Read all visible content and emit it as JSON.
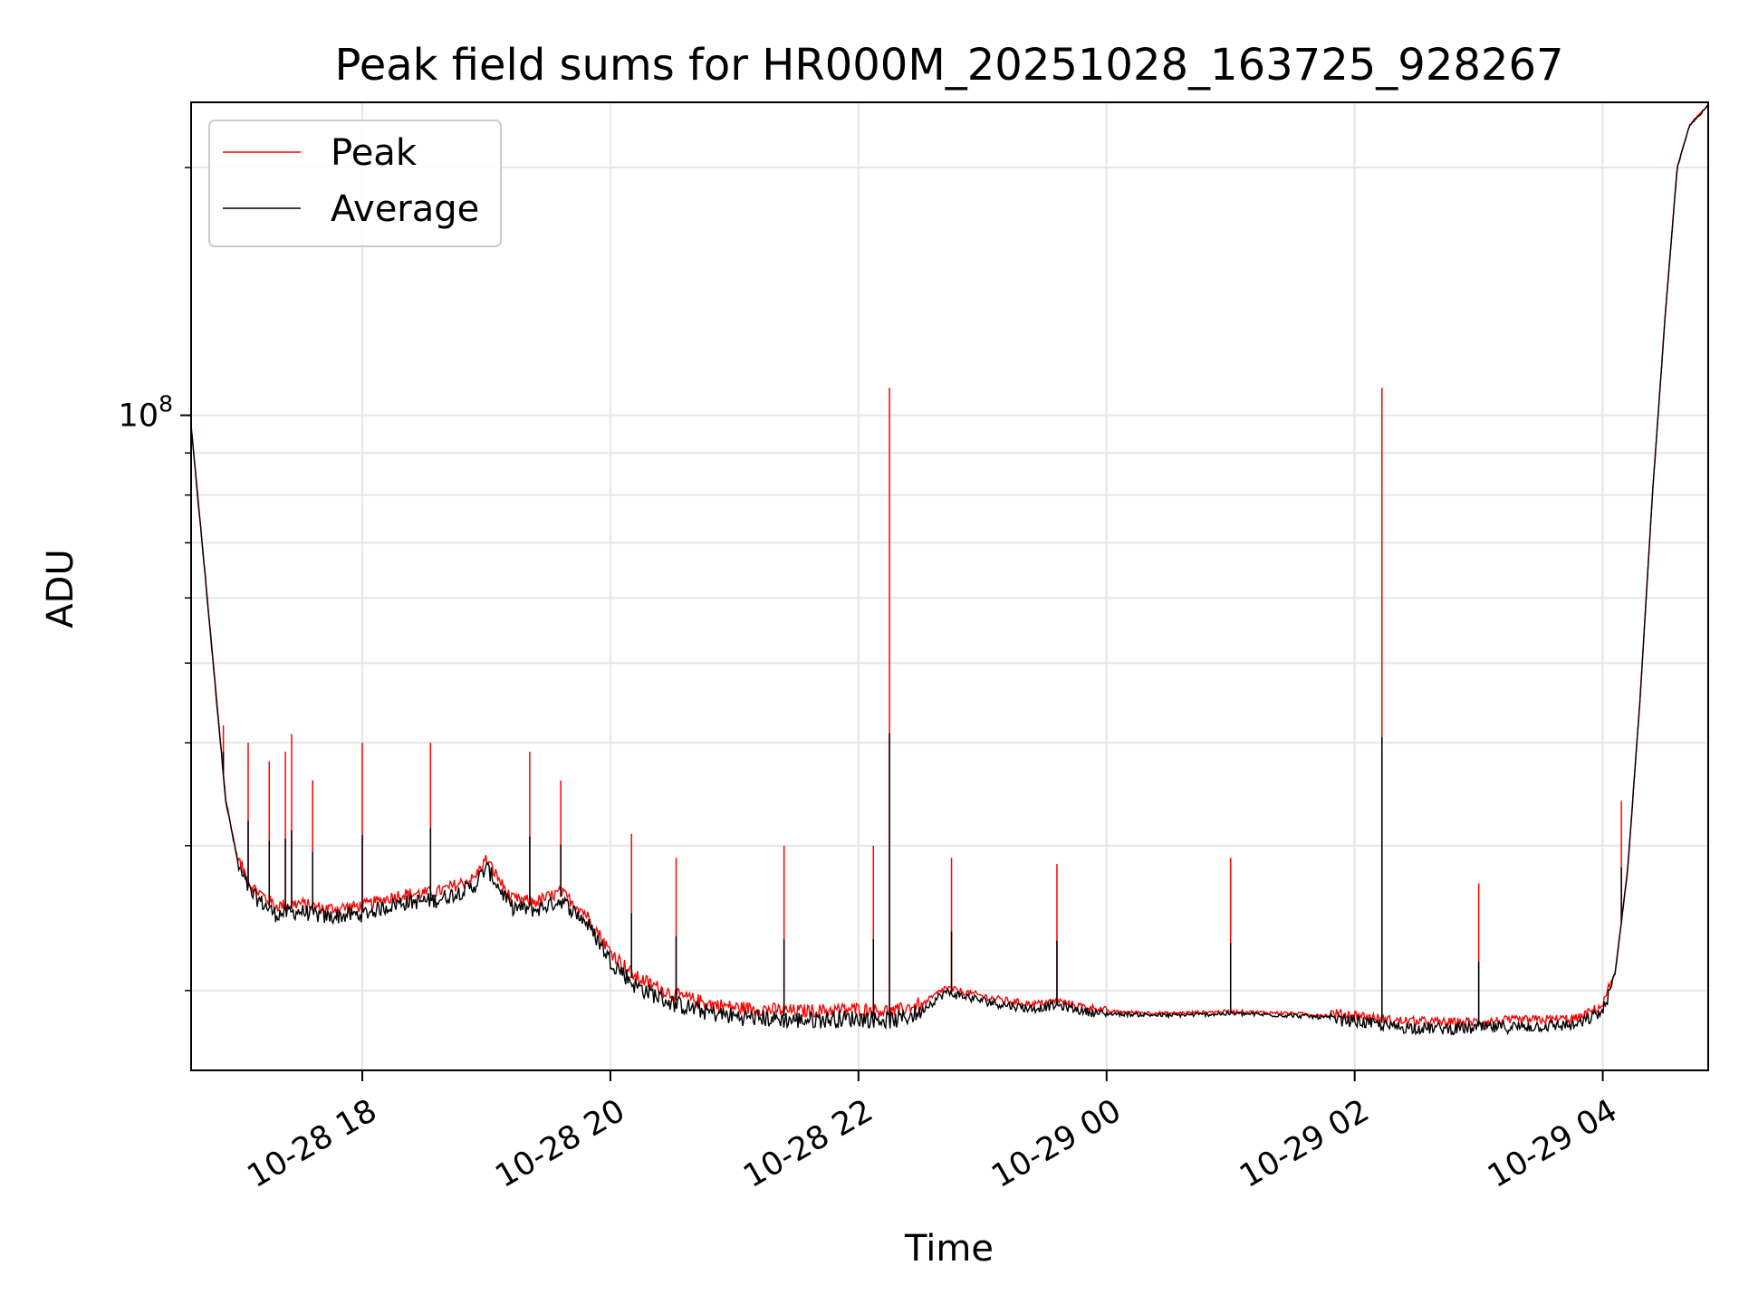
{
  "chart_data": {
    "type": "line",
    "title": "Peak field sums for HR000M_20251028_163725_928267",
    "xlabel": "Time",
    "ylabel": "ADU",
    "yscale": "log",
    "ylim": [
      16000000,
      240000000
    ],
    "xlim_hours": [
      16.62,
      28.85
    ],
    "x_ticks": [
      {
        "hours": 18,
        "label": "10-28 18"
      },
      {
        "hours": 20,
        "label": "10-28 20"
      },
      {
        "hours": 22,
        "label": "10-28 22"
      },
      {
        "hours": 24,
        "label": "10-29 00"
      },
      {
        "hours": 26,
        "label": "10-29 02"
      },
      {
        "hours": 28,
        "label": "10-29 04"
      }
    ],
    "y_major_ticks": [
      {
        "value": 100000000,
        "base": "10",
        "exp": "8"
      }
    ],
    "y_minor_gridlines": [
      20000000,
      30000000,
      40000000,
      50000000,
      60000000,
      70000000,
      80000000,
      90000000,
      200000000
    ],
    "grid": true,
    "legend": {
      "position": "top-left",
      "entries": [
        {
          "label": "Peak",
          "color": "#ff0000"
        },
        {
          "label": "Average",
          "color": "#000000"
        }
      ]
    },
    "series": [
      {
        "name": "Average",
        "color": "#000000",
        "x_hours": [
          16.62,
          16.75,
          16.9,
          17.0,
          17.1,
          17.3,
          17.5,
          17.7,
          18.0,
          18.3,
          18.6,
          18.9,
          19.0,
          19.2,
          19.4,
          19.6,
          19.8,
          20.0,
          20.2,
          20.5,
          20.8,
          21.0,
          21.5,
          22.0,
          22.3,
          22.5,
          22.7,
          22.9,
          23.1,
          23.4,
          23.6,
          23.8,
          24.0,
          24.5,
          25.0,
          25.5,
          26.0,
          26.3,
          26.8,
          27.3,
          27.8,
          28.0,
          28.1,
          28.2,
          28.3,
          28.4,
          28.5,
          28.6,
          28.7,
          28.85
        ],
        "values": [
          97000000,
          60000000,
          34000000,
          28500000,
          26500000,
          25000000,
          25200000,
          24800000,
          25000000,
          25800000,
          26000000,
          27000000,
          28500000,
          25500000,
          25300000,
          26000000,
          24500000,
          22000000,
          20500000,
          19500000,
          19000000,
          18800000,
          18600000,
          18700000,
          18600000,
          19000000,
          20000000,
          19700000,
          19400000,
          19100000,
          19300000,
          19000000,
          18800000,
          18700000,
          18800000,
          18700000,
          18500000,
          18200000,
          18100000,
          18200000,
          18300000,
          19000000,
          21000000,
          28000000,
          45000000,
          80000000,
          130000000,
          200000000,
          225000000,
          238000000
        ]
      },
      {
        "name": "Peak",
        "color": "#ff0000",
        "spikes": [
          {
            "hours": 16.88,
            "value": 42000000
          },
          {
            "hours": 17.08,
            "value": 40000000
          },
          {
            "hours": 17.25,
            "value": 38000000
          },
          {
            "hours": 17.38,
            "value": 39000000
          },
          {
            "hours": 17.43,
            "value": 41000000
          },
          {
            "hours": 17.6,
            "value": 36000000
          },
          {
            "hours": 18.0,
            "value": 40000000
          },
          {
            "hours": 18.55,
            "value": 40000000
          },
          {
            "hours": 19.35,
            "value": 39000000
          },
          {
            "hours": 19.6,
            "value": 36000000
          },
          {
            "hours": 20.17,
            "value": 31000000
          },
          {
            "hours": 20.53,
            "value": 29000000
          },
          {
            "hours": 21.4,
            "value": 30000000
          },
          {
            "hours": 22.25,
            "value": 108000000
          },
          {
            "hours": 22.12,
            "value": 30000000
          },
          {
            "hours": 22.75,
            "value": 29000000
          },
          {
            "hours": 23.6,
            "value": 28500000
          },
          {
            "hours": 25.0,
            "value": 29000000
          },
          {
            "hours": 26.22,
            "value": 108000000
          },
          {
            "hours": 27.0,
            "value": 27000000
          },
          {
            "hours": 28.15,
            "value": 34000000
          }
        ]
      }
    ]
  }
}
